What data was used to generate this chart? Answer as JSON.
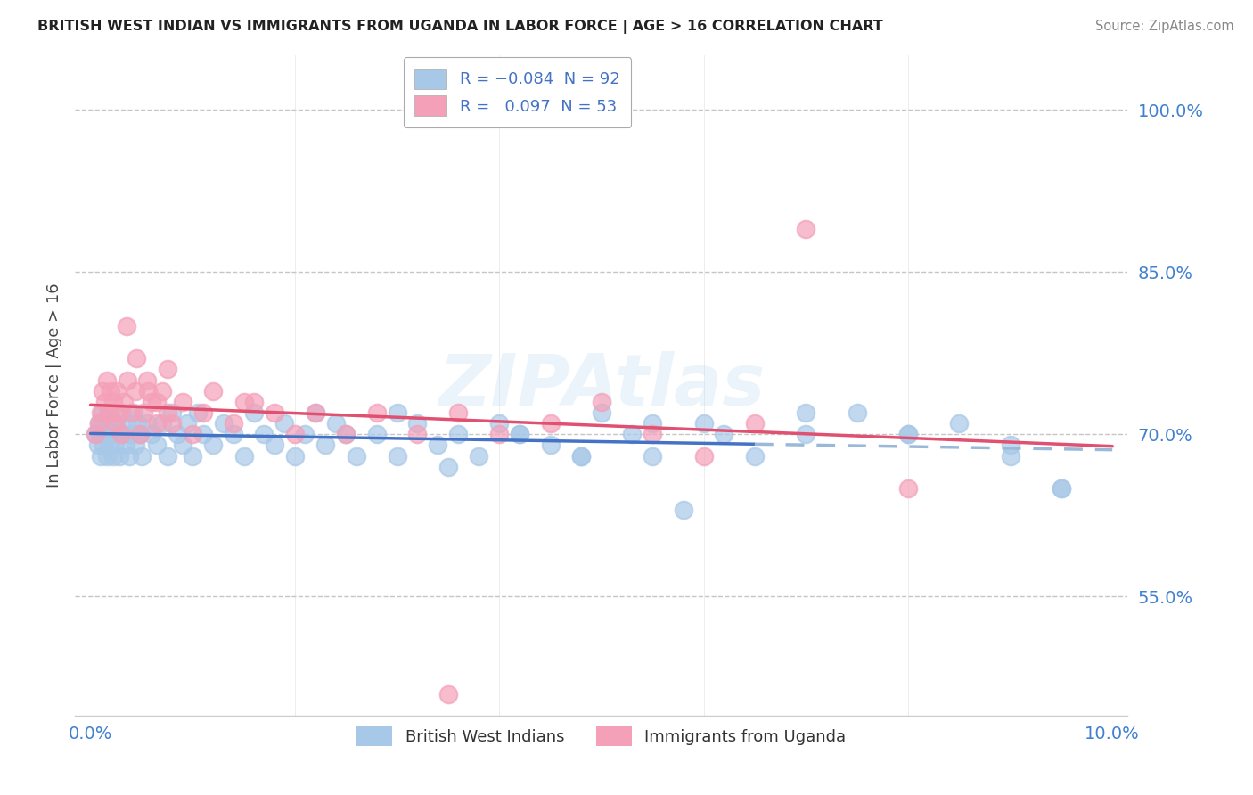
{
  "title": "BRITISH WEST INDIAN VS IMMIGRANTS FROM UGANDA IN LABOR FORCE | AGE > 16 CORRELATION CHART",
  "source": "Source: ZipAtlas.com",
  "ylabel": "In Labor Force | Age > 16",
  "xlim": [
    -0.15,
    10.15
  ],
  "ylim": [
    44.0,
    105.0
  ],
  "y_ticks": [
    55.0,
    70.0,
    85.0,
    100.0
  ],
  "y_tick_labels": [
    "55.0%",
    "70.0%",
    "85.0%",
    "100.0%"
  ],
  "x_tick_labels": [
    "0.0%",
    "10.0%"
  ],
  "x_tick_pos": [
    0.0,
    10.0
  ],
  "legend_labels": [
    "British West Indians",
    "Immigrants from Uganda"
  ],
  "blue_color": "#a8c8e8",
  "pink_color": "#f4a0b8",
  "blue_line_color": "#4472c4",
  "pink_line_color": "#e05070",
  "blue_line_dash_color": "#9ab8d8",
  "r_blue": -0.084,
  "n_blue": 92,
  "r_pink": 0.097,
  "n_pink": 53,
  "watermark": "ZIPAtlas",
  "background_color": "#ffffff",
  "grid_color": "#c0c0c0",
  "title_color": "#222222",
  "tick_color": "#4080d0",
  "ylabel_color": "#444444",
  "legend_text_color": "#4472c4",
  "blue_x": [
    0.05,
    0.07,
    0.08,
    0.09,
    0.1,
    0.11,
    0.12,
    0.13,
    0.14,
    0.15,
    0.16,
    0.17,
    0.18,
    0.19,
    0.2,
    0.21,
    0.22,
    0.23,
    0.24,
    0.25,
    0.27,
    0.28,
    0.3,
    0.32,
    0.34,
    0.36,
    0.38,
    0.4,
    0.42,
    0.44,
    0.46,
    0.48,
    0.5,
    0.55,
    0.6,
    0.65,
    0.7,
    0.75,
    0.8,
    0.85,
    0.9,
    0.95,
    1.0,
    1.05,
    1.1,
    1.2,
    1.3,
    1.4,
    1.5,
    1.6,
    1.7,
    1.8,
    1.9,
    2.0,
    2.1,
    2.2,
    2.3,
    2.4,
    2.5,
    2.6,
    2.8,
    3.0,
    3.2,
    3.4,
    3.6,
    3.8,
    4.0,
    4.2,
    4.5,
    4.8,
    5.0,
    5.3,
    5.5,
    5.8,
    6.0,
    6.5,
    7.0,
    7.5,
    8.0,
    8.5,
    9.0,
    9.5,
    3.0,
    3.5,
    4.2,
    4.8,
    5.5,
    6.2,
    7.0,
    8.0,
    9.0,
    9.5
  ],
  "blue_y": [
    70,
    69,
    71,
    70,
    68,
    71,
    72,
    69,
    70,
    71,
    68,
    70,
    72,
    69,
    70,
    71,
    68,
    70,
    69,
    71,
    70,
    68,
    72,
    70,
    69,
    71,
    68,
    70,
    72,
    69,
    71,
    70,
    68,
    71,
    70,
    69,
    71,
    68,
    72,
    70,
    69,
    71,
    68,
    72,
    70,
    69,
    71,
    70,
    68,
    72,
    70,
    69,
    71,
    68,
    70,
    72,
    69,
    71,
    70,
    68,
    70,
    72,
    71,
    69,
    70,
    68,
    71,
    70,
    69,
    68,
    72,
    70,
    68,
    63,
    71,
    68,
    70,
    72,
    70,
    71,
    68,
    65,
    68,
    67,
    70,
    68,
    71,
    70,
    72,
    70,
    69,
    65
  ],
  "pink_x": [
    0.05,
    0.08,
    0.1,
    0.12,
    0.14,
    0.16,
    0.18,
    0.2,
    0.22,
    0.24,
    0.26,
    0.28,
    0.3,
    0.33,
    0.36,
    0.4,
    0.44,
    0.48,
    0.52,
    0.56,
    0.6,
    0.65,
    0.7,
    0.75,
    0.8,
    0.9,
    1.0,
    1.1,
    1.2,
    1.4,
    1.6,
    1.8,
    2.0,
    2.2,
    2.5,
    2.8,
    3.2,
    3.6,
    4.0,
    4.5,
    5.0,
    5.5,
    6.0,
    6.5,
    7.0,
    8.0,
    0.35,
    0.45,
    0.55,
    0.65,
    0.75,
    1.5,
    3.5
  ],
  "pink_y": [
    70,
    71,
    72,
    74,
    73,
    75,
    72,
    74,
    73,
    71,
    74,
    72,
    70,
    73,
    75,
    72,
    74,
    70,
    72,
    74,
    73,
    71,
    74,
    72,
    71,
    73,
    70,
    72,
    74,
    71,
    73,
    72,
    70,
    72,
    70,
    72,
    70,
    72,
    70,
    71,
    73,
    70,
    68,
    71,
    89,
    65,
    80,
    77,
    75,
    73,
    76,
    73,
    46
  ]
}
